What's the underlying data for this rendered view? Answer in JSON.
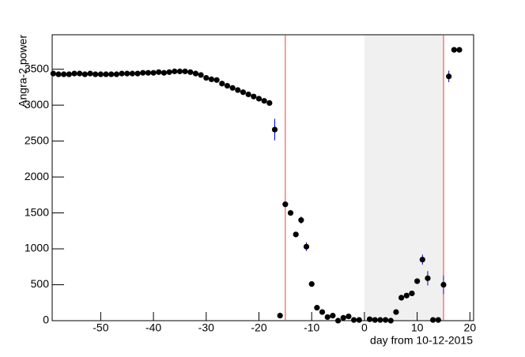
{
  "chart_data": {
    "type": "scatter",
    "x_label": "day from 10-12-2015",
    "y_label": "Angra-2 power",
    "xlim": [
      -59.2,
      20.7
    ],
    "ylim": [
      0,
      3980
    ],
    "xticks": [
      -50,
      -40,
      -30,
      -20,
      -10,
      0,
      10,
      20
    ],
    "yticks": [
      0,
      500,
      1000,
      1500,
      2000,
      2500,
      3000,
      3500
    ],
    "shaded_region": [
      0,
      15
    ],
    "vlines": [
      -15,
      15
    ],
    "color": "#000000",
    "error_color": "#0000cc",
    "line_color": "#e8413a",
    "shade_color": "#f0f0f0",
    "x": [
      -59,
      -58,
      -57,
      -56,
      -55,
      -54,
      -53,
      -52,
      -51,
      -50,
      -49,
      -48,
      -47,
      -46,
      -45,
      -44,
      -43,
      -42,
      -41,
      -40,
      -39,
      -38,
      -37,
      -36,
      -35,
      -34,
      -33,
      -32,
      -31,
      -30,
      -29,
      -28,
      -27,
      -26,
      -25,
      -24,
      -23,
      -22,
      -21,
      -20,
      -19,
      -18,
      -17,
      -16,
      -15,
      -14,
      -13,
      -12,
      -11,
      -10,
      -9,
      -8,
      -7,
      -6,
      -5,
      -4,
      -3,
      -2,
      -1,
      1,
      2,
      3,
      4,
      5,
      6,
      7,
      8,
      9,
      10,
      11,
      12,
      13,
      14,
      15,
      16,
      17,
      18
    ],
    "values": [
      3440,
      3430,
      3430,
      3430,
      3440,
      3440,
      3430,
      3440,
      3430,
      3430,
      3430,
      3430,
      3430,
      3440,
      3440,
      3440,
      3440,
      3450,
      3450,
      3450,
      3460,
      3450,
      3460,
      3470,
      3470,
      3470,
      3460,
      3440,
      3420,
      3380,
      3360,
      3350,
      3300,
      3270,
      3240,
      3210,
      3180,
      3150,
      3120,
      3090,
      3060,
      3030,
      2660,
      70,
      1620,
      1500,
      1200,
      1400,
      1030,
      510,
      180,
      120,
      50,
      70,
      0,
      40,
      60,
      10,
      10,
      20,
      10,
      10,
      10,
      0,
      120,
      320,
      350,
      380,
      550,
      850,
      590,
      10,
      10,
      500,
      3400,
      3770,
      3770
    ],
    "errors": [
      10,
      10,
      10,
      10,
      10,
      10,
      10,
      10,
      10,
      10,
      10,
      10,
      10,
      10,
      10,
      10,
      10,
      10,
      10,
      10,
      10,
      10,
      10,
      10,
      10,
      10,
      10,
      10,
      10,
      10,
      10,
      10,
      10,
      10,
      10,
      10,
      10,
      10,
      10,
      10,
      10,
      10,
      150,
      10,
      40,
      30,
      30,
      50,
      60,
      25,
      20,
      20,
      10,
      10,
      10,
      10,
      10,
      10,
      10,
      10,
      10,
      10,
      10,
      10,
      10,
      20,
      20,
      20,
      30,
      70,
      100,
      10,
      10,
      130,
      80,
      20,
      20
    ]
  }
}
